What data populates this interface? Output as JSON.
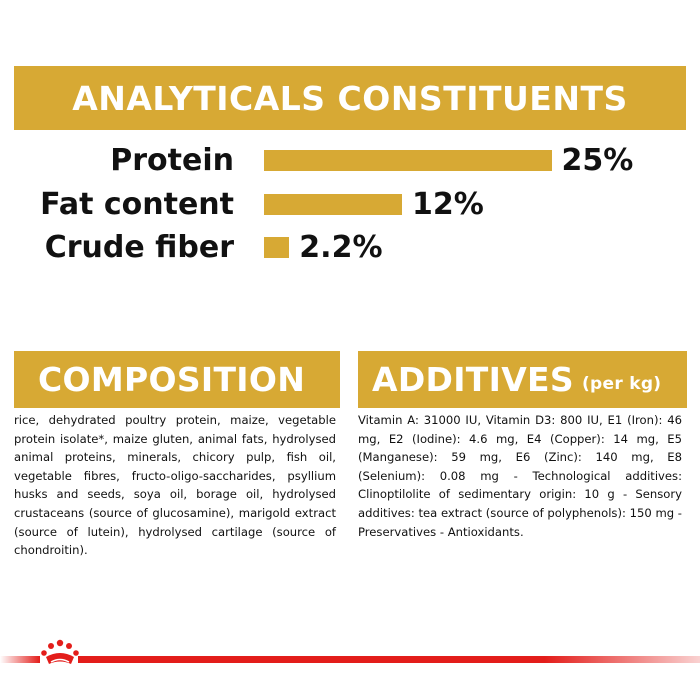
{
  "analytics": {
    "title": "ANALYTICALS CONSTITUENTS",
    "rows": [
      {
        "label": "Protein",
        "value": "25%",
        "percent": 25
      },
      {
        "label": "Fat content",
        "value": "12%",
        "percent": 12
      },
      {
        "label": "Crude fiber",
        "value": "2.2%",
        "percent": 2.2
      }
    ]
  },
  "composition": {
    "title": "COMPOSITION",
    "text": "rice, dehydrated poultry protein, maize, vegetable protein isolate*, maize gluten, animal fats, hydrolysed animal proteins, minerals, chicory pulp, fish oil, vegetable fibres, fructo-oligo-saccharides, psyllium husks and seeds, soya oil, borage oil, hydrolysed crustaceans (source of glucosamine), marigold extract (source of lutein), hydrolysed cartilage (source of chondroitin)."
  },
  "additives": {
    "title": "ADDITIVES",
    "unit": "(per kg)",
    "text": "Vitamin A: 31000 IU, Vitamin D3: 800 IU, E1 (Iron): 46 mg, E2 (Iodine): 4.6 mg, E4 (Copper): 14 mg, E5 (Manganese): 59 mg, E6 (Zinc): 140 mg, E8 (Selenium): 0.08 mg - Technological additives: Clinoptilolite of sedimentary origin: 10 g - Sensory additives: tea extract (source of polyphenols): 150 mg - Preservatives - Antioxidants."
  },
  "colors": {
    "accent": "#d7a934",
    "brand_red": "#e31d1a",
    "text": "#111111"
  },
  "icons": {
    "footer": "crown-icon"
  }
}
